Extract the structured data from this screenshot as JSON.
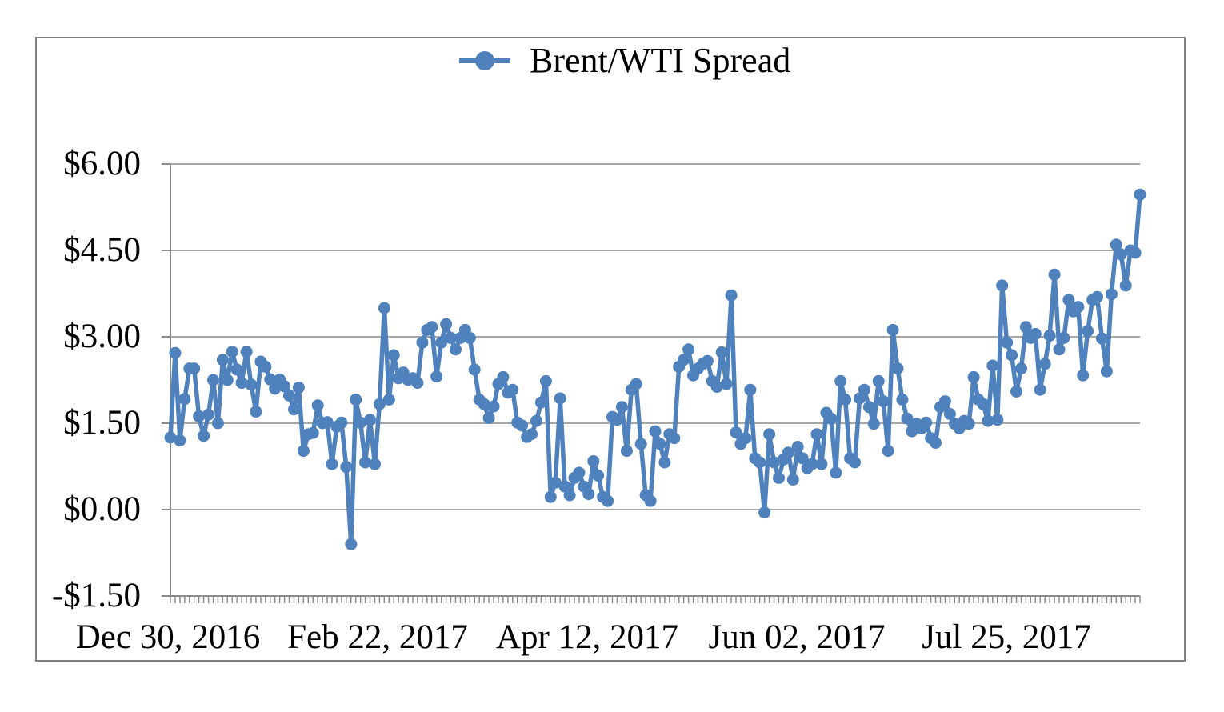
{
  "legend": {
    "label": "Brent/WTI Spread"
  },
  "colors": {
    "series": "#4F81BD",
    "gridline": "#A6A6A6",
    "axis": "#8C8C8C",
    "border": "#808080",
    "text": "#000000"
  },
  "chart_data": {
    "type": "line",
    "title": "Brent/WTI Spread",
    "series_name": "Brent/WTI Spread",
    "legend_position": "top-center",
    "marker": "circle",
    "grid": "horizontal",
    "ylim": [
      -1.5,
      6.0
    ],
    "y_tick_step": 1.5,
    "y_tick_labels": [
      "$6.00",
      "$4.50",
      "$3.00",
      "$1.50",
      "$0.00",
      "-$1.50"
    ],
    "x_tick_labels": [
      "Dec 30, 2016",
      "Feb 22, 2017",
      "Apr 12, 2017",
      "Jun 02, 2017",
      "Jul 25, 2017"
    ],
    "x_start_label": "Dec 30, 2016",
    "n_points": 205,
    "values": [
      1.25,
      2.72,
      1.2,
      1.92,
      2.45,
      2.45,
      1.62,
      1.28,
      1.65,
      2.25,
      1.5,
      2.6,
      2.25,
      2.74,
      2.43,
      2.2,
      2.74,
      2.17,
      1.7,
      2.57,
      2.48,
      2.26,
      2.1,
      2.26,
      2.14,
      1.98,
      1.74,
      2.12,
      1.02,
      1.31,
      1.33,
      1.81,
      1.5,
      1.52,
      0.79,
      1.44,
      1.51,
      0.74,
      -0.6,
      1.91,
      1.51,
      0.82,
      1.56,
      0.79,
      1.83,
      3.5,
      1.91,
      2.68,
      2.28,
      2.38,
      2.25,
      2.28,
      2.2,
      2.9,
      3.12,
      3.17,
      2.31,
      2.9,
      3.22,
      2.98,
      2.78,
      2.98,
      3.12,
      2.98,
      2.43,
      1.91,
      1.83,
      1.59,
      1.79,
      2.18,
      2.3,
      2.03,
      2.08,
      1.51,
      1.46,
      1.26,
      1.31,
      1.54,
      1.86,
      2.23,
      0.22,
      0.47,
      1.93,
      0.4,
      0.25,
      0.55,
      0.64,
      0.4,
      0.27,
      0.84,
      0.59,
      0.22,
      0.15,
      1.61,
      1.56,
      1.78,
      1.02,
      2.08,
      2.18,
      1.14,
      0.25,
      0.15,
      1.36,
      1.14,
      0.82,
      1.31,
      1.24,
      2.48,
      2.6,
      2.78,
      2.33,
      2.45,
      2.53,
      2.58,
      2.23,
      2.13,
      2.73,
      2.18,
      3.72,
      1.34,
      1.14,
      1.24,
      2.08,
      0.89,
      0.82,
      -0.05,
      1.31,
      0.82,
      0.55,
      0.87,
      0.99,
      0.52,
      1.09,
      0.89,
      0.72,
      0.79,
      1.31,
      0.79,
      1.68,
      1.58,
      0.64,
      2.23,
      1.91,
      0.89,
      0.82,
      1.93,
      2.08,
      1.78,
      1.49,
      2.23,
      1.88,
      1.02,
      3.12,
      2.45,
      1.91,
      1.58,
      1.36,
      1.49,
      1.41,
      1.51,
      1.24,
      1.16,
      1.78,
      1.88,
      1.66,
      1.49,
      1.41,
      1.54,
      1.49,
      2.3,
      1.91,
      1.83,
      1.54,
      2.5,
      1.56,
      3.89,
      2.9,
      2.68,
      2.05,
      2.45,
      3.17,
      2.98,
      3.05,
      2.08,
      2.53,
      3.02,
      4.08,
      2.78,
      2.98,
      3.64,
      3.44,
      3.52,
      2.33,
      3.1,
      3.64,
      3.69,
      2.97,
      2.4,
      3.74,
      4.6,
      4.43,
      3.89,
      4.5,
      4.46,
      5.47
    ]
  }
}
